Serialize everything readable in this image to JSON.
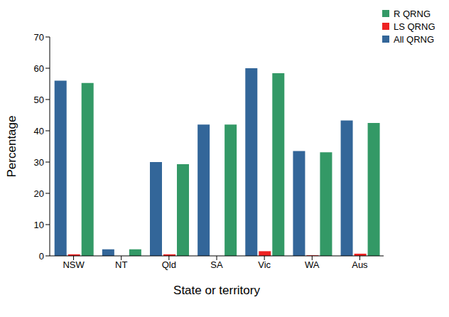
{
  "chart_data": {
    "type": "bar",
    "x_label": "State or territory",
    "y_label": "Percentage",
    "categories": [
      "NSW",
      "NT",
      "Qld",
      "SA",
      "Vic",
      "WA",
      "Aus"
    ],
    "series": [
      {
        "name": "All QRNG",
        "color": "#336699",
        "values": [
          56,
          2.1,
          30,
          42,
          60,
          33.5,
          43.3
        ]
      },
      {
        "name": "LS QRNG",
        "color": "#ee2222",
        "values": [
          0.5,
          0,
          0.5,
          0,
          1.5,
          0.2,
          0.7
        ]
      },
      {
        "name": "R QRNG",
        "color": "#339966",
        "values": [
          55.3,
          2.1,
          29.3,
          42,
          58.4,
          33.1,
          42.5
        ]
      }
    ],
    "ylim": [
      0,
      70
    ],
    "yticks": [
      0,
      10,
      20,
      30,
      40,
      50,
      60,
      70
    ],
    "grid": false,
    "legend": "upper right"
  }
}
